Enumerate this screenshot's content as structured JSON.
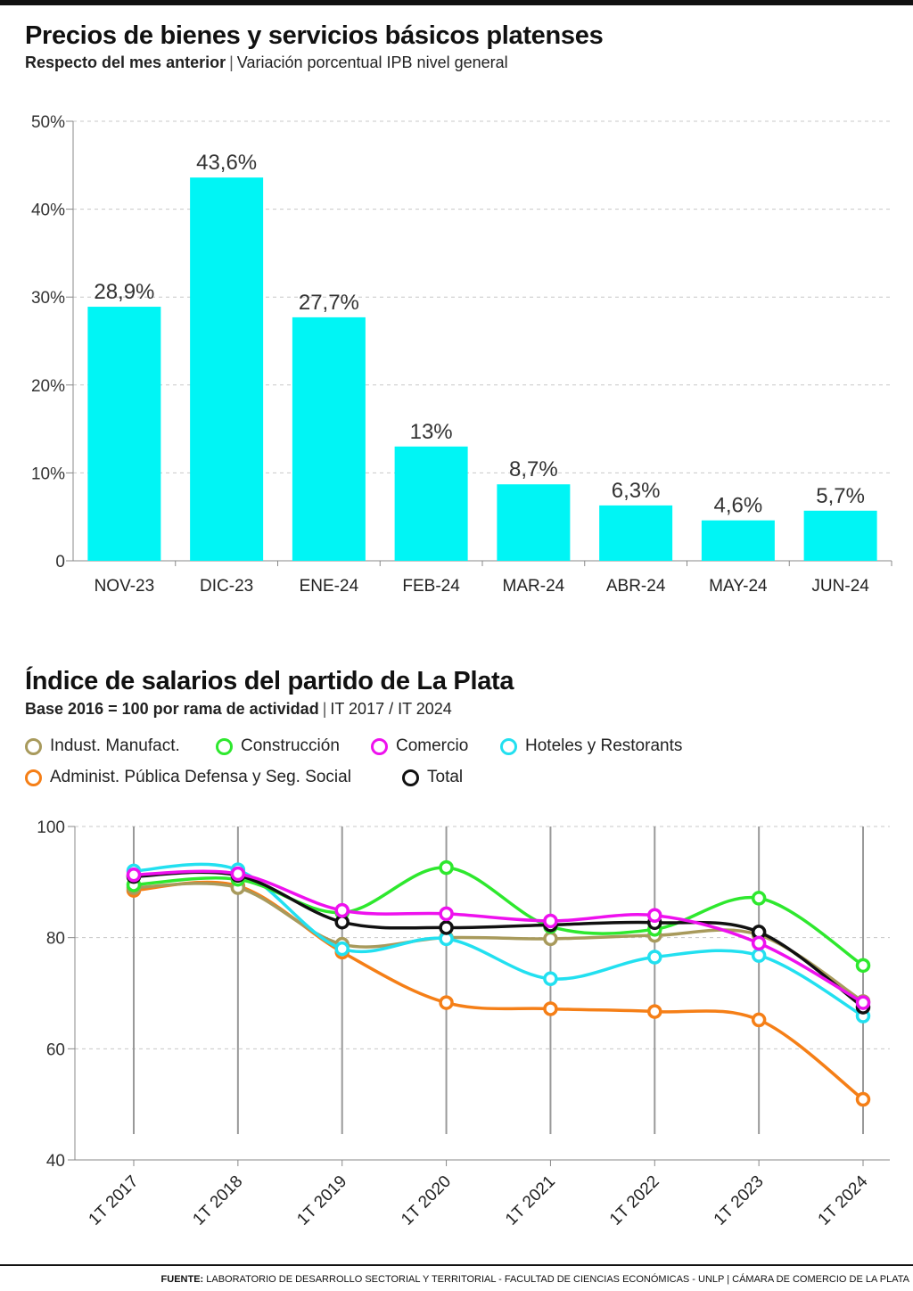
{
  "chart_data": [
    {
      "type": "bar",
      "title": "Precios de bienes y servicios básicos platenses",
      "subtitle_bold": "Respecto del mes anterior",
      "subtitle": "Variación porcentual IPB nivel general",
      "categories": [
        "NOV-23",
        "DIC-23",
        "ENE-24",
        "FEB-24",
        "MAR-24",
        "ABR-24",
        "MAY-24",
        "JUN-24"
      ],
      "values": [
        28.9,
        43.6,
        27.7,
        13,
        8.7,
        6.3,
        4.6,
        5.7
      ],
      "value_labels": [
        "28,9%",
        "43,6%",
        "27,7%",
        "13%",
        "8,7%",
        "6,3%",
        "4,6%",
        "5,7%"
      ],
      "ylim": [
        0,
        50
      ],
      "yticks": [
        0,
        10,
        20,
        30,
        40,
        50
      ],
      "ytick_labels": [
        "0",
        "10%",
        "20%",
        "30%",
        "40%",
        "50%"
      ],
      "bar_color": "#00f5f5",
      "grid": true
    },
    {
      "type": "line",
      "title": "Índice de salarios del partido de La Plata",
      "subtitle_bold": "Base 2016 = 100 por rama de actividad",
      "subtitle": "IT 2017 / IT 2024",
      "x": [
        "1T 2017",
        "1T 2018",
        "1T 2019",
        "1T 2020",
        "1T 2021",
        "1T 2022",
        "1T 2023",
        "1T 2024"
      ],
      "ylim": [
        40,
        100
      ],
      "yticks": [
        40,
        60,
        80,
        100
      ],
      "ytick_labels": [
        "40",
        "60",
        "80",
        "100"
      ],
      "grid": true,
      "legend_position": "top",
      "series": [
        {
          "name": "Indust. Manufact.",
          "color": "#a89a5c",
          "values": [
            89,
            89,
            78.8,
            80,
            79.8,
            80.4,
            80.5,
            68.5
          ]
        },
        {
          "name": "Construcción",
          "color": "#2ee82e",
          "values": [
            89.5,
            90.5,
            84.5,
            92.6,
            82,
            81.5,
            87.1,
            75
          ]
        },
        {
          "name": "Comercio",
          "color": "#ee11ee",
          "values": [
            91.3,
            91.5,
            84.9,
            84.3,
            83,
            84,
            79,
            68.3
          ]
        },
        {
          "name": "Hoteles y Restorants",
          "color": "#22e0f0",
          "values": [
            92,
            92.2,
            78,
            79.8,
            72.6,
            76.5,
            76.8,
            65.9
          ]
        },
        {
          "name": "Administ. Pública Defensa y Seg. Social",
          "color": "#f57f17",
          "values": [
            88.5,
            89.3,
            77.4,
            68.3,
            67.2,
            66.7,
            65.2,
            50.9
          ]
        },
        {
          "name": "Total",
          "color": "#111111",
          "values": [
            91,
            91.2,
            82.8,
            81.8,
            82.3,
            82.7,
            81,
            67.5
          ]
        }
      ]
    }
  ],
  "source": {
    "label": "FUENTE:",
    "text": "LABORATORIO DE DESARROLLO SECTORIAL Y TERRITORIAL - FACULTAD DE CIENCIAS ECONÓMICAS - UNLP | CÁMARA DE COMERCIO DE LA PLATA"
  }
}
